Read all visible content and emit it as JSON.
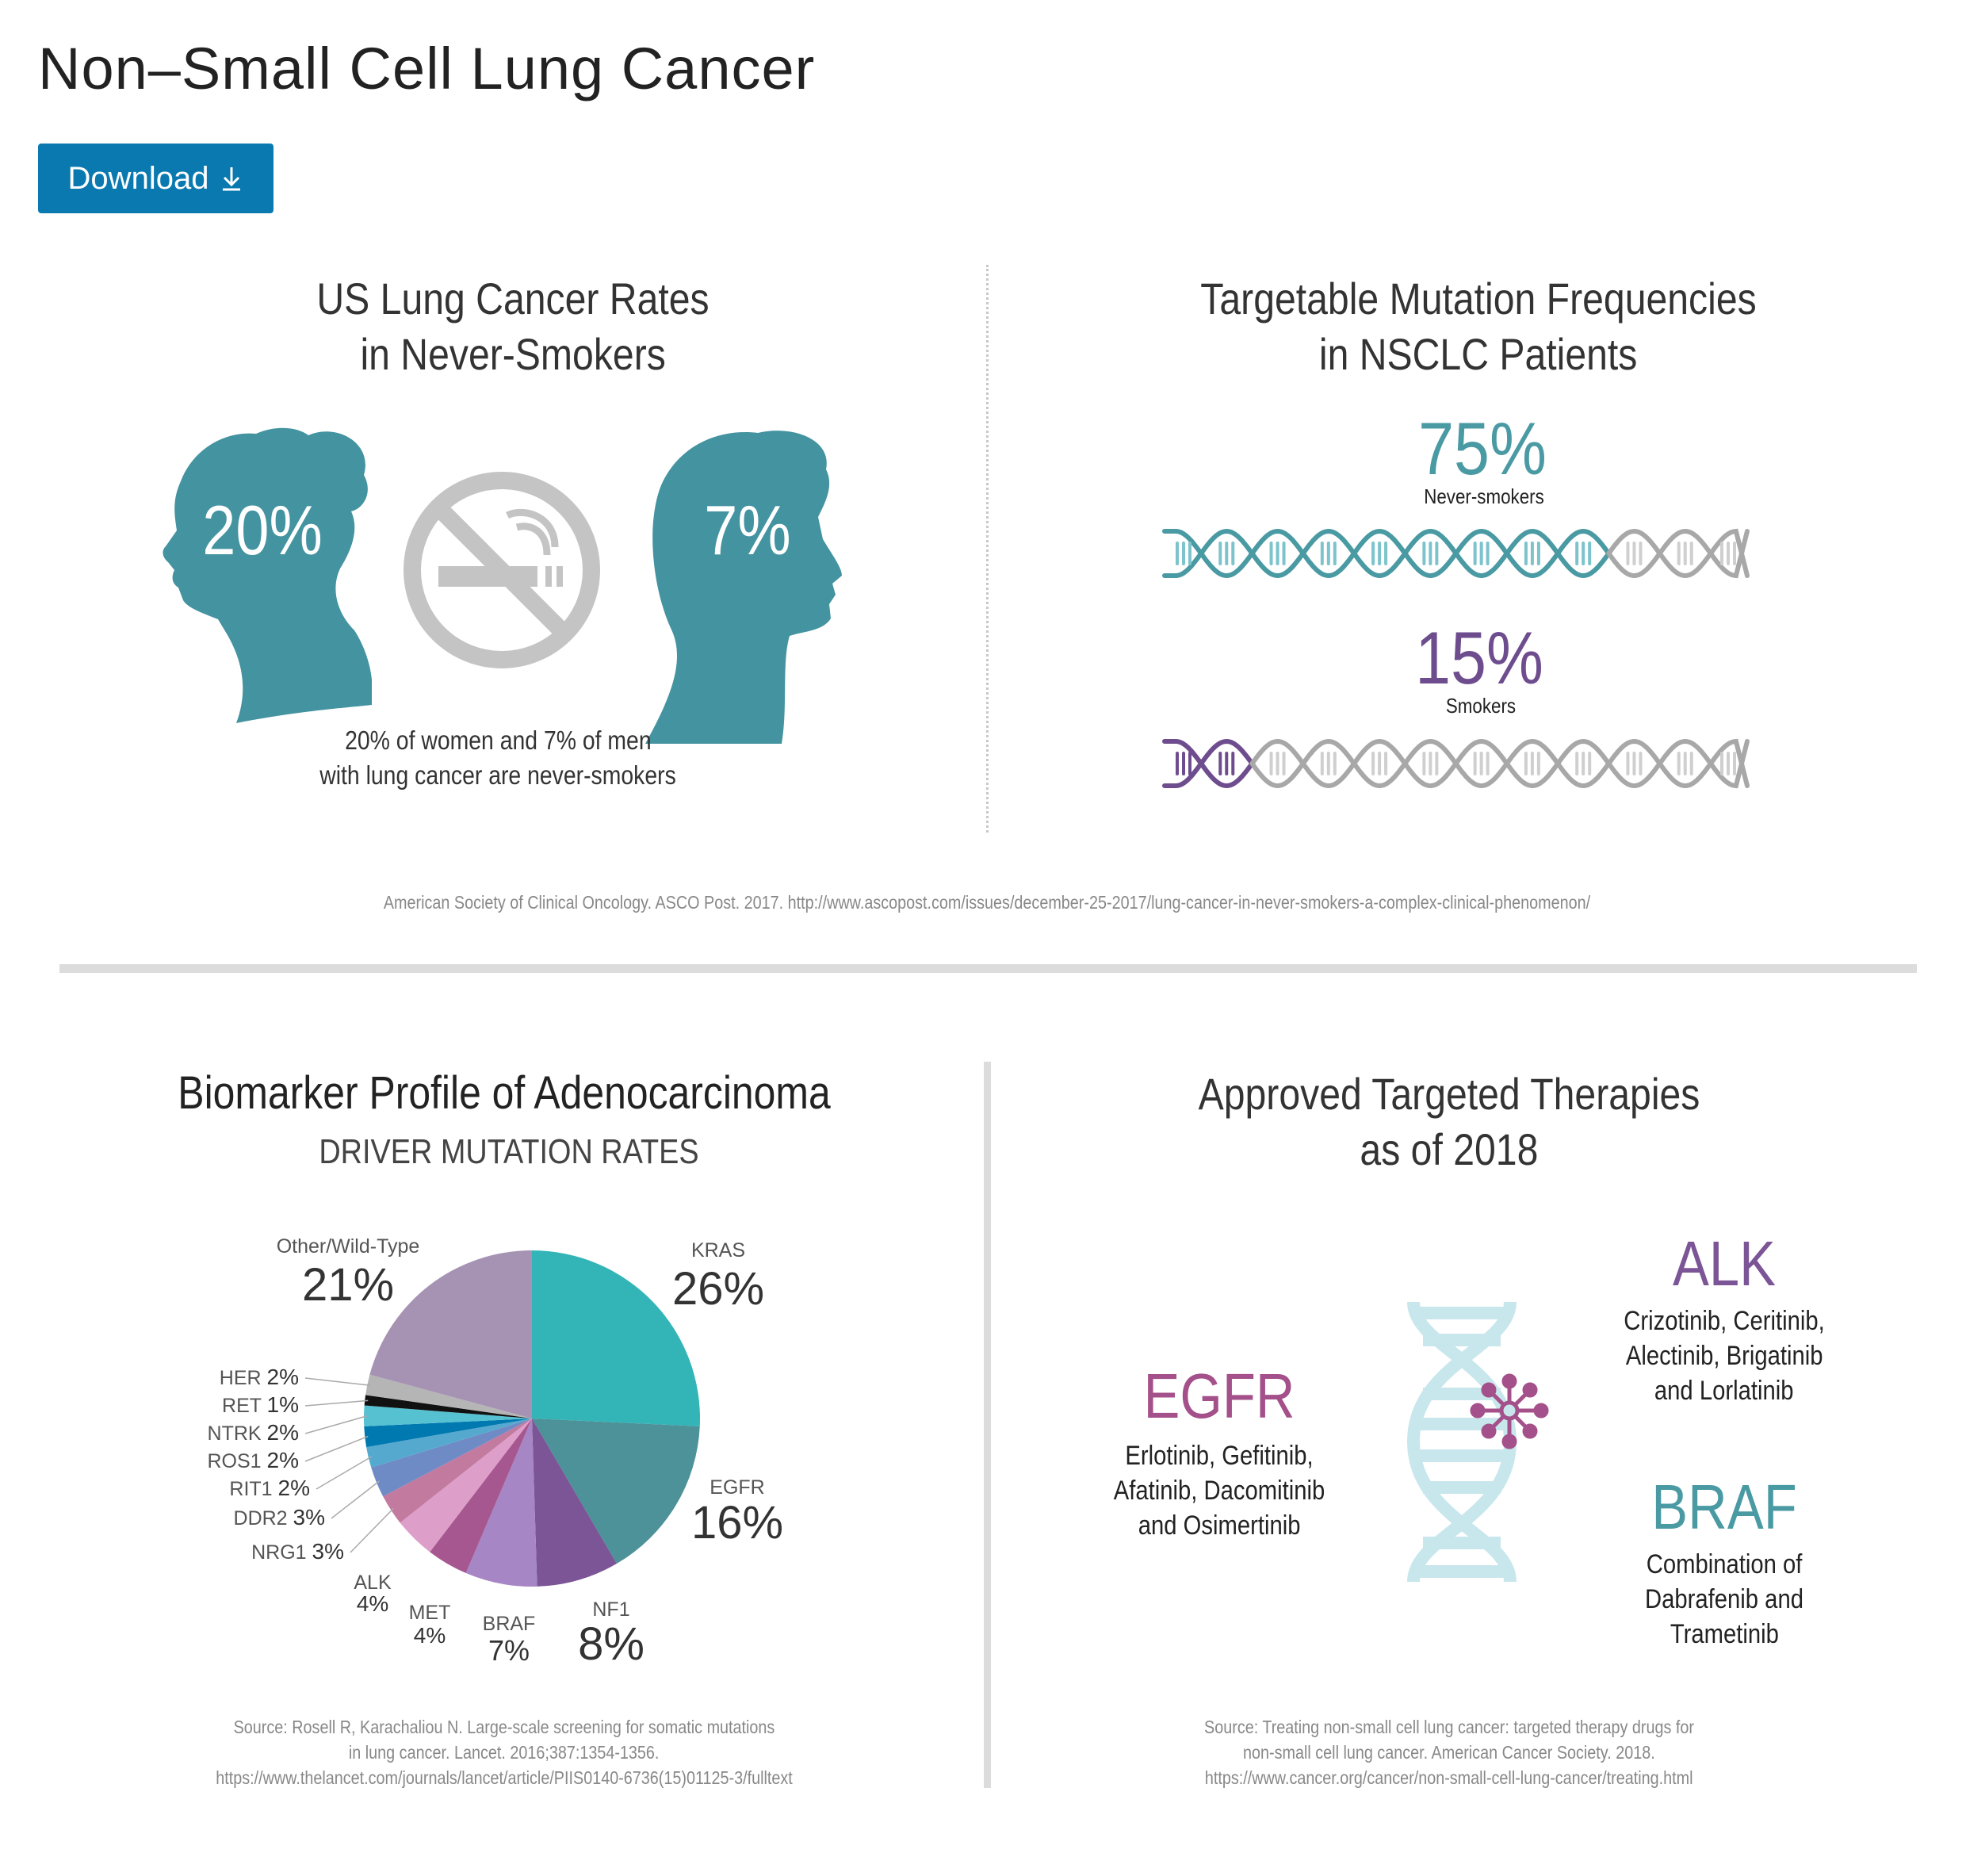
{
  "header": {
    "title": "Non–Small Cell Lung Cancer",
    "download_label": "Download",
    "download_icon": "download-arrow-icon"
  },
  "never_smokers": {
    "title_lines": [
      "US Lung Cancer Rates",
      "in Never-Smokers"
    ],
    "women_pct": "20%",
    "men_pct": "7%",
    "icon": "no-smoking-icon",
    "caption_lines": [
      "20% of women and 7% of men",
      "with lung cancer are never-smokers"
    ],
    "silhouette_color": "#4393a0",
    "icon_color": "#c4c4c4"
  },
  "mutations": {
    "title_lines": [
      "Targetable Mutation Frequencies",
      "in NSCLC Patients"
    ],
    "rows": [
      {
        "pct_label": "75%",
        "value": 75,
        "label": "Never-smokers",
        "color": "#4a9aa3",
        "bar_color": "#7cc3cc"
      },
      {
        "pct_label": "15%",
        "value": 15,
        "label": "Smokers",
        "color": "#6e4d8e",
        "bar_color": "#6e4d8e"
      }
    ],
    "inactive_color": "#a8a8a8"
  },
  "top_source": "American Society of Clinical Oncology. ASCO Post. 2017. http://www.ascopost.com/issues/december-25-2017/lung-cancer-in-never-smokers-a-complex-clinical-phenomenon/",
  "biomarker": {
    "title": "Biomarker Profile of Adenocarcinoma",
    "subtitle": "DRIVER MUTATION RATES",
    "source_lines": [
      "Source: Rosell R, Karachaliou N. Large-scale screening for somatic mutations",
      "in lung cancer. Lancet. 2016;387:1354-1356.",
      "https://www.thelancet.com/journals/lancet/article/PIIS0140-6736(15)01125-3/fulltext"
    ]
  },
  "chart_data": {
    "type": "pie",
    "title": "Biomarker Profile of Adenocarcinoma",
    "subtitle": "DRIVER MUTATION RATES",
    "unit": "%",
    "slices": [
      {
        "label": "KRAS",
        "value": 26,
        "color": "#33b5b8"
      },
      {
        "label": "EGFR",
        "value": 16,
        "color": "#4d9199"
      },
      {
        "label": "NF1",
        "value": 8,
        "color": "#7b5596"
      },
      {
        "label": "BRAF",
        "value": 7,
        "color": "#a686c4"
      },
      {
        "label": "MET",
        "value": 4,
        "color": "#a6578f"
      },
      {
        "label": "ALK",
        "value": 4,
        "color": "#dd9fc9"
      },
      {
        "label": "NRG1",
        "value": 3,
        "color": "#c27a9e"
      },
      {
        "label": "DDR2",
        "value": 3,
        "color": "#6f8bc6"
      },
      {
        "label": "RIT1",
        "value": 2,
        "color": "#55a9cf"
      },
      {
        "label": "ROS1",
        "value": 2,
        "color": "#0078b0"
      },
      {
        "label": "NTRK",
        "value": 2,
        "color": "#56c1d1"
      },
      {
        "label": "RET",
        "value": 1,
        "color": "#111111"
      },
      {
        "label": "HER",
        "value": 2,
        "color": "#b5b5b5"
      },
      {
        "label": "Other/Wild-Type",
        "value": 21,
        "color": "#a692b3"
      }
    ]
  },
  "therapies": {
    "title_lines": [
      "Approved Targeted Therapies",
      "as of 2018"
    ],
    "items": [
      {
        "name": "ALK",
        "color": "#7b5596",
        "drug_lines": [
          "Crizotinib, Ceritinib,",
          "Alectinib, Brigatinib",
          "and Lorlatinib"
        ]
      },
      {
        "name": "EGFR",
        "color": "#a4508a",
        "drug_lines": [
          "Erlotinib, Gefitinib,",
          "Afatinib, Dacomitinib",
          "and Osimertinib"
        ]
      },
      {
        "name": "BRAF",
        "color": "#4a9aa3",
        "drug_lines": [
          "Combination of",
          "Dabrafenib and",
          "Trametinib"
        ]
      }
    ],
    "icon": "dna-molecule-icon",
    "source_lines": [
      "Source: Treating non-small cell lung cancer: targeted therapy drugs for",
      "non-small cell lung cancer. American Cancer Society. 2018.",
      "https://www.cancer.org/cancer/non-small-cell-lung-cancer/treating.html"
    ]
  }
}
